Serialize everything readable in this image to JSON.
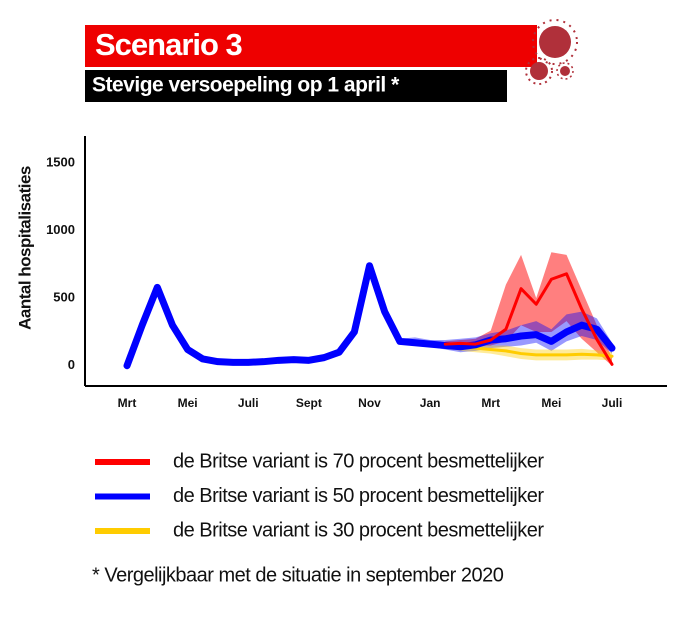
{
  "chart_data": {
    "type": "line",
    "title": "Scenario 3",
    "subtitle": "Stevige versoepeling op 1 april *",
    "ylabel": "Aantal hospitalisaties",
    "footnote": "* Vergelijkbaar met de situatie in september 2020",
    "categories": [
      "Mrt",
      null,
      null,
      null,
      "Mei",
      null,
      null,
      null,
      "Juli",
      null,
      null,
      null,
      "Sept",
      null,
      null,
      null,
      "Nov",
      null,
      null,
      null,
      "Jan",
      null,
      null,
      null,
      "Mrt",
      null,
      null,
      null,
      "Mei",
      null,
      null,
      null,
      "Juli"
    ],
    "ylim": [
      -150,
      1700
    ],
    "yticks": [
      0,
      500,
      1000,
      1500
    ],
    "series": [
      {
        "name": "de Britse variant is 70 procent besmettelijker",
        "color": "#ff0000",
        "values": [
          null,
          null,
          null,
          null,
          null,
          null,
          null,
          null,
          null,
          null,
          null,
          null,
          null,
          null,
          null,
          null,
          null,
          null,
          null,
          null,
          null,
          160,
          165,
          160,
          190,
          270,
          570,
          455,
          640,
          680,
          420,
          195,
          10
        ],
        "lower": [
          null,
          null,
          null,
          null,
          null,
          null,
          null,
          null,
          null,
          null,
          null,
          null,
          null,
          null,
          null,
          null,
          null,
          null,
          null,
          null,
          null,
          140,
          140,
          140,
          150,
          180,
          300,
          250,
          250,
          330,
          200,
          100,
          0
        ],
        "upper": [
          null,
          null,
          null,
          null,
          null,
          null,
          null,
          null,
          null,
          null,
          null,
          null,
          null,
          null,
          null,
          null,
          null,
          null,
          null,
          null,
          null,
          180,
          190,
          200,
          260,
          600,
          820,
          500,
          840,
          820,
          560,
          300,
          60
        ]
      },
      {
        "name": "de Britse variant is 50 procent besmettelijker",
        "color": "#0000ff",
        "values": [
          0,
          300,
          580,
          300,
          120,
          50,
          30,
          25,
          25,
          30,
          40,
          45,
          40,
          60,
          100,
          250,
          740,
          400,
          180,
          170,
          160,
          150,
          140,
          155,
          190,
          200,
          220,
          230,
          180,
          250,
          300,
          270,
          130
        ],
        "lower": [
          null,
          null,
          null,
          null,
          null,
          null,
          null,
          null,
          null,
          null,
          null,
          null,
          null,
          null,
          null,
          null,
          null,
          null,
          170,
          150,
          140,
          120,
          100,
          110,
          130,
          140,
          150,
          170,
          110,
          180,
          220,
          190,
          90
        ],
        "upper": [
          null,
          null,
          null,
          null,
          null,
          null,
          null,
          null,
          null,
          null,
          null,
          null,
          null,
          null,
          null,
          null,
          null,
          null,
          200,
          210,
          190,
          190,
          200,
          210,
          240,
          260,
          300,
          330,
          270,
          380,
          400,
          350,
          170
        ]
      },
      {
        "name": "de Britse variant is 30 procent besmettelijker",
        "color": "#ffcc00",
        "values": [
          null,
          null,
          null,
          null,
          null,
          null,
          null,
          null,
          null,
          null,
          null,
          null,
          null,
          null,
          null,
          null,
          null,
          null,
          null,
          null,
          null,
          150,
          140,
          130,
          120,
          110,
          90,
          80,
          80,
          80,
          85,
          80,
          70
        ],
        "lower": [
          null,
          null,
          null,
          null,
          null,
          null,
          null,
          null,
          null,
          null,
          null,
          null,
          null,
          null,
          null,
          null,
          null,
          null,
          null,
          null,
          null,
          130,
          110,
          100,
          90,
          70,
          50,
          40,
          40,
          40,
          45,
          45,
          40
        ],
        "upper": [
          null,
          null,
          null,
          null,
          null,
          null,
          null,
          null,
          null,
          null,
          null,
          null,
          null,
          null,
          null,
          null,
          null,
          null,
          null,
          null,
          null,
          170,
          170,
          160,
          150,
          150,
          130,
          120,
          120,
          120,
          125,
          115,
          100
        ]
      }
    ]
  }
}
